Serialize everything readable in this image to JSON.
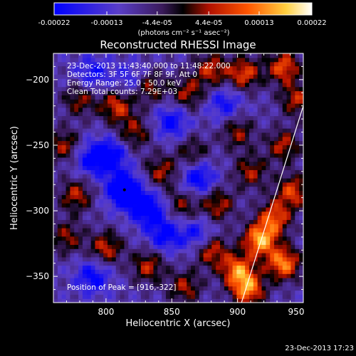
{
  "chart_data": {
    "type": "heatmap",
    "title": "Reconstructed RHESSI Image",
    "xlabel": "Heliocentric X (arcsec)",
    "ylabel": "Heliocentric Y (arcsec)",
    "xlim": [
      760,
      950
    ],
    "ylim": [
      -370,
      -180
    ],
    "x_ticks": [
      "800",
      "850",
      "900",
      "950"
    ],
    "x_tick_values": [
      800,
      850,
      900,
      950
    ],
    "y_ticks": [
      "-200",
      "-250",
      "-300",
      "-350"
    ],
    "y_tick_values": [
      -200,
      -250,
      -300,
      -350
    ],
    "colorbar": {
      "ticks": [
        "-0.00022",
        "-0.00013",
        "-4.4e-05",
        "4.4e-05",
        "0.00013",
        "0.00022"
      ],
      "tick_values": [
        -0.00022,
        -0.00013,
        -4.4e-05,
        4.4e-05,
        0.00013,
        0.00022
      ],
      "range": [
        -0.00022,
        0.00022
      ],
      "units": "(photons cm⁻² s⁻¹ asec⁻²)",
      "colormap": [
        "#0000ff",
        "#5a3ec8",
        "#3a1a5a",
        "#000000",
        "#b01000",
        "#ff5500",
        "#ffd040",
        "#ffffff"
      ]
    },
    "annotations": [
      "23-Dec-2013 11:43:40.000 to 11:48:22.000",
      "Detectors: 3F 5F 6F 7F 8F 9F, Att 0",
      "Energy Range: 25.0 - 50.0 keV",
      "Clean     Total counts: 7.29E+03"
    ],
    "peak_label": "Position of Peak = [916,-322]",
    "peak_position": [
      916,
      -322
    ],
    "minimum_marker": [
      814,
      -284
    ],
    "limb_line": [
      [
        903,
        -370
      ],
      [
        950,
        -220
      ]
    ],
    "blobs": [
      {
        "x": 808,
        "y": -220,
        "v": 0.00014
      },
      {
        "x": 832,
        "y": -205,
        "v": 0.00012
      },
      {
        "x": 862,
        "y": -210,
        "v": 0.00011
      },
      {
        "x": 880,
        "y": -192,
        "v": 0.00013
      },
      {
        "x": 905,
        "y": -195,
        "v": 0.00015
      },
      {
        "x": 935,
        "y": -190,
        "v": 0.00016
      },
      {
        "x": 945,
        "y": -215,
        "v": 0.00012
      },
      {
        "x": 780,
        "y": -215,
        "v": 0.0001
      },
      {
        "x": 768,
        "y": -250,
        "v": 0.00011
      },
      {
        "x": 777,
        "y": -288,
        "v": 0.00012
      },
      {
        "x": 770,
        "y": -320,
        "v": 0.0001
      },
      {
        "x": 800,
        "y": -328,
        "v": 0.00013
      },
      {
        "x": 832,
        "y": -342,
        "v": 0.00012
      },
      {
        "x": 860,
        "y": -358,
        "v": 0.00011
      },
      {
        "x": 880,
        "y": -330,
        "v": 0.00014
      },
      {
        "x": 900,
        "y": -345,
        "v": 0.00018
      },
      {
        "x": 917,
        "y": -322,
        "v": 0.00022
      },
      {
        "x": 935,
        "y": -340,
        "v": 0.0002
      },
      {
        "x": 928,
        "y": -305,
        "v": 0.00016
      },
      {
        "x": 908,
        "y": -360,
        "v": 0.00019
      },
      {
        "x": 942,
        "y": -285,
        "v": 0.00015
      },
      {
        "x": 885,
        "y": -295,
        "v": 0.00012
      },
      {
        "x": 910,
        "y": -270,
        "v": 0.00011
      },
      {
        "x": 935,
        "y": -250,
        "v": 0.00012
      },
      {
        "x": 900,
        "y": -240,
        "v": 0.0001
      },
      {
        "x": 842,
        "y": -270,
        "v": 0.00011
      },
      {
        "x": 822,
        "y": -240,
        "v": 0.0001
      },
      {
        "x": 858,
        "y": -295,
        "v": 9e-05
      },
      {
        "x": 866,
        "y": -255,
        "v": 8e-05
      },
      {
        "x": 814,
        "y": -284,
        "v": -0.00022
      },
      {
        "x": 832,
        "y": -298,
        "v": -0.00016
      },
      {
        "x": 803,
        "y": -258,
        "v": -0.00014
      },
      {
        "x": 850,
        "y": -232,
        "v": -0.00011
      },
      {
        "x": 870,
        "y": -275,
        "v": -0.00013
      },
      {
        "x": 788,
        "y": -260,
        "v": -0.0001
      },
      {
        "x": 845,
        "y": -318,
        "v": -0.00012
      },
      {
        "x": 790,
        "y": -350,
        "v": -0.00011
      },
      {
        "x": 820,
        "y": -200,
        "v": -8e-05
      },
      {
        "x": 890,
        "y": -218,
        "v": -9e-05
      },
      {
        "x": 870,
        "y": -318,
        "v": -0.0001
      },
      {
        "x": 790,
        "y": -195,
        "v": -9e-05
      }
    ]
  },
  "footer": {
    "timestamp": "23-Dec-2013 17:23"
  }
}
